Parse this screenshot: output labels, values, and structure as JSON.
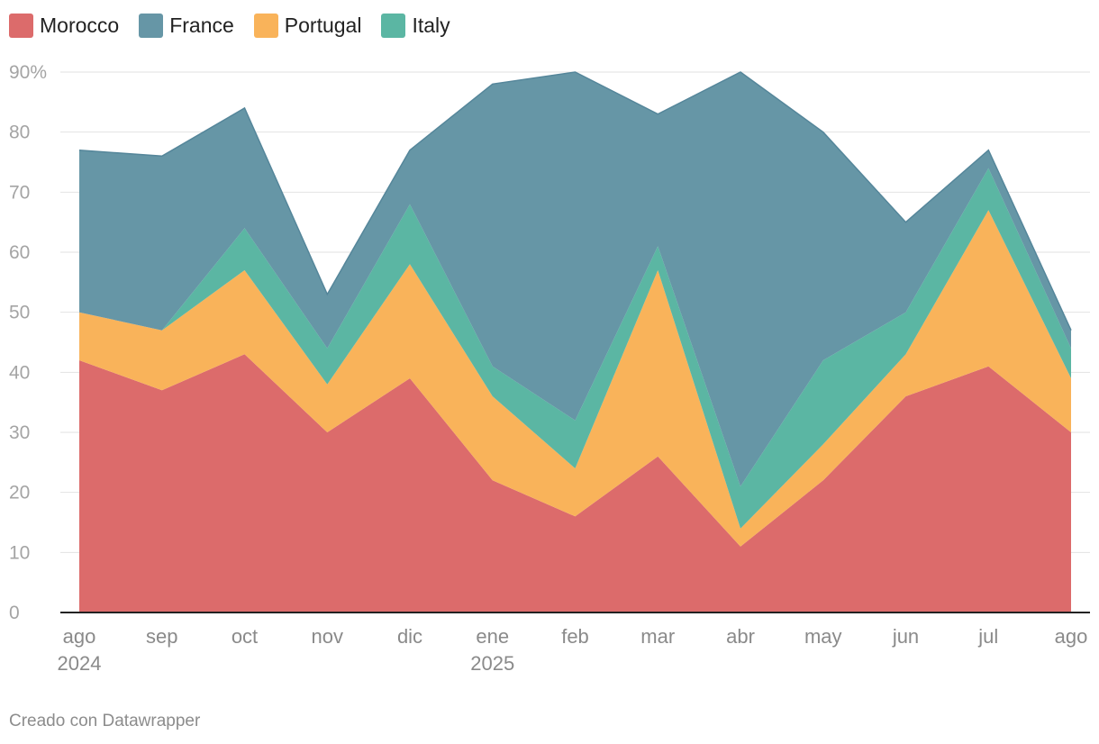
{
  "chart_data": {
    "type": "area",
    "stacked": true,
    "grid": true,
    "legend_position": "top-left",
    "x": [
      "ago 2024",
      "sep",
      "oct",
      "nov",
      "dic",
      "ene 2025",
      "feb",
      "mar",
      "abr",
      "may",
      "jun",
      "jul",
      "ago"
    ],
    "x_labels": [
      {
        "line1": "ago",
        "line2": "2024"
      },
      {
        "line1": "sep",
        "line2": ""
      },
      {
        "line1": "oct",
        "line2": ""
      },
      {
        "line1": "nov",
        "line2": ""
      },
      {
        "line1": "dic",
        "line2": ""
      },
      {
        "line1": "ene",
        "line2": "2025"
      },
      {
        "line1": "feb",
        "line2": ""
      },
      {
        "line1": "mar",
        "line2": ""
      },
      {
        "line1": "abr",
        "line2": ""
      },
      {
        "line1": "may",
        "line2": ""
      },
      {
        "line1": "jun",
        "line2": ""
      },
      {
        "line1": "jul",
        "line2": ""
      },
      {
        "line1": "ago",
        "line2": ""
      }
    ],
    "ylim": [
      0,
      90
    ],
    "yticks": [
      0,
      10,
      20,
      30,
      40,
      50,
      60,
      70,
      80,
      90
    ],
    "ytick_labels": [
      "0",
      "10",
      "20",
      "30",
      "40",
      "50",
      "60",
      "70",
      "80",
      "90%"
    ],
    "series": [
      {
        "name": "Morocco",
        "color": "#dc6b6b",
        "values": [
          42,
          37,
          43,
          30,
          39,
          22,
          16,
          26,
          11,
          22,
          36,
          41,
          30
        ]
      },
      {
        "name": "France",
        "color": "#6696a6",
        "values": [
          27,
          29,
          20,
          9,
          9,
          47,
          58,
          22,
          69,
          38,
          15,
          3,
          3
        ]
      },
      {
        "name": "Portugal",
        "color": "#f9b35a",
        "values": [
          8,
          10,
          14,
          8,
          19,
          14,
          8,
          31,
          3,
          6,
          7,
          26,
          9
        ]
      },
      {
        "name": "Italy",
        "color": "#5bb6a3",
        "values": [
          0,
          0,
          7,
          6,
          10,
          5,
          8,
          4,
          7,
          14,
          7,
          7,
          5
        ]
      }
    ]
  },
  "credit": "Creado con Datawrapper"
}
